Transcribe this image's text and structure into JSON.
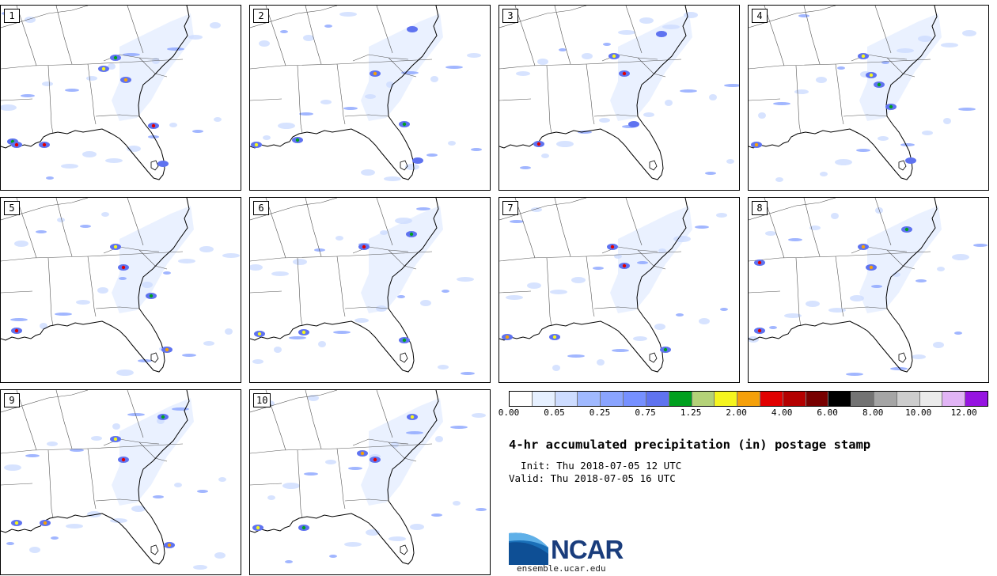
{
  "panels": [
    {
      "label": "1"
    },
    {
      "label": "2"
    },
    {
      "label": "3"
    },
    {
      "label": "4"
    },
    {
      "label": "5"
    },
    {
      "label": "6"
    },
    {
      "label": "7"
    },
    {
      "label": "8"
    },
    {
      "label": "9"
    },
    {
      "label": "10"
    }
  ],
  "colorbar": {
    "colors": [
      "#ffffff",
      "#e6f0ff",
      "#cddcff",
      "#a0b9ff",
      "#8aa4ff",
      "#7690ff",
      "#5f73f0",
      "#00a01e",
      "#b4d278",
      "#f5f51e",
      "#f5a00a",
      "#e10000",
      "#b40000",
      "#780000",
      "#000000",
      "#737373",
      "#a5a5a5",
      "#cdcdcd",
      "#ebebeb",
      "#e1b4f5",
      "#9614e1"
    ],
    "labels": [
      "0.00",
      "0.05",
      "0.25",
      "0.75",
      "1.25",
      "2.00",
      "4.00",
      "6.00",
      "8.00",
      "10.00",
      "12.00"
    ]
  },
  "title": "4-hr accumulated precipitation (in) postage stamp",
  "init": "  Init: Thu 2018-07-05 12 UTC",
  "valid": "Valid: Thu 2018-07-05 16 UTC",
  "logo_text": "NCAR",
  "url": "ensemble.ucar.edu"
}
